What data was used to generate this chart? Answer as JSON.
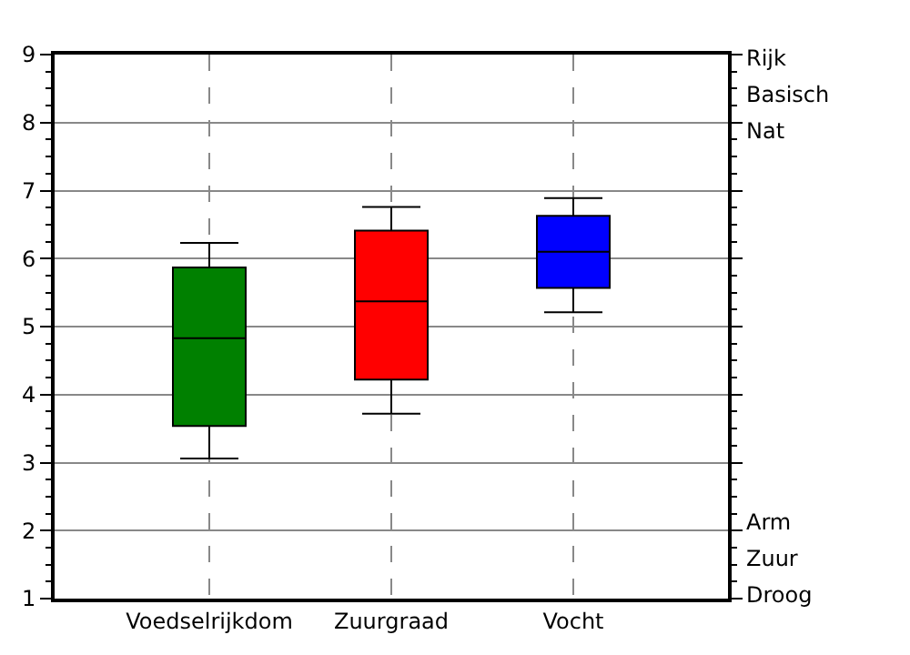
{
  "chart_data": {
    "type": "box",
    "categories": [
      "Voedselrijkdom",
      "Zuurgraad",
      "Vocht"
    ],
    "colors": [
      "#008000",
      "#ff0000",
      "#0000ff"
    ],
    "boxes": [
      {
        "low": 3.06,
        "q1": 3.54,
        "median": 4.83,
        "q3": 5.87,
        "high": 6.23
      },
      {
        "low": 3.72,
        "q1": 4.22,
        "median": 5.37,
        "q3": 6.41,
        "high": 6.76
      },
      {
        "low": 5.21,
        "q1": 5.57,
        "median": 6.1,
        "q3": 6.63,
        "high": 6.89
      }
    ],
    "ylim": [
      1,
      9
    ],
    "yticks": [
      1,
      2,
      3,
      4,
      5,
      6,
      7,
      8,
      9
    ],
    "grid": true,
    "legend": false,
    "annotations": [
      "Rijk",
      "Basisch",
      "Nat",
      "Arm",
      "Zuur",
      "Droog"
    ]
  }
}
